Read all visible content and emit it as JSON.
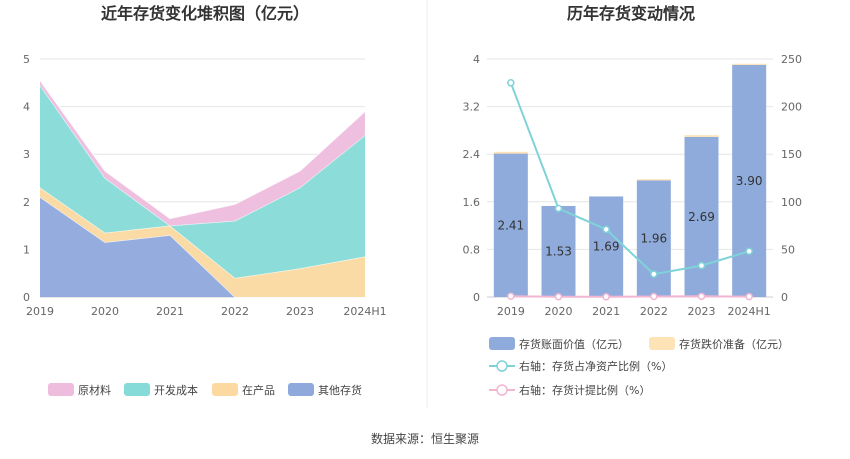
{
  "chart_data": [
    {
      "type": "area",
      "stacked": true,
      "title": "近年存货变化堆积图（亿元）",
      "categories": [
        "2019",
        "2020",
        "2021",
        "2022",
        "2023",
        "2024H1"
      ],
      "ylim": [
        0,
        5
      ],
      "yticks": [
        "0",
        "1",
        "2",
        "3",
        "4",
        "5"
      ],
      "grid": true,
      "legend_position": "bottom",
      "series": [
        {
          "name": "其他存货",
          "color": "#8fa9dc",
          "values": [
            2.1,
            1.15,
            1.3,
            0.0,
            0.0,
            0.0
          ]
        },
        {
          "name": "在产品",
          "color": "#fbd9a0",
          "values": [
            0.2,
            0.2,
            0.2,
            0.4,
            0.6,
            0.85
          ]
        },
        {
          "name": "开发成本",
          "color": "#86dbd8",
          "values": [
            2.15,
            1.15,
            0.0,
            1.2,
            1.7,
            2.55
          ]
        },
        {
          "name": "原材料",
          "color": "#eebcdd",
          "values": [
            0.1,
            0.15,
            0.15,
            0.35,
            0.35,
            0.5
          ]
        }
      ],
      "legend_order": [
        "原材料",
        "开发成本",
        "在产品",
        "其他存货"
      ]
    },
    {
      "type": "bar",
      "stacked": true,
      "title": "历年存货变动情况",
      "categories": [
        "2019",
        "2020",
        "2021",
        "2022",
        "2023",
        "2024H1"
      ],
      "ylim_left": [
        0,
        4
      ],
      "yticks_left": [
        "0",
        "0.8",
        "1.6",
        "2.4",
        "3.2",
        "4"
      ],
      "ylim_right": [
        0,
        250
      ],
      "yticks_right": [
        "0",
        "50",
        "100",
        "150",
        "200",
        "250"
      ],
      "grid": true,
      "legend_position": "bottom",
      "bars": [
        {
          "name": "存货账面价值（亿元）",
          "color": "#8fabdb",
          "values": [
            2.41,
            1.53,
            1.69,
            1.96,
            2.69,
            3.9
          ],
          "labels": [
            "2.41",
            "1.53",
            "1.69",
            "1.96",
            "2.69",
            "3.90"
          ]
        },
        {
          "name": "存货跌价准备（亿元）",
          "color": "#fde3b6",
          "values": [
            0.03,
            0.0,
            0.0,
            0.02,
            0.03,
            0.02
          ]
        }
      ],
      "lines": [
        {
          "name": "右轴：存货占净资产比例（%）",
          "color": "#7fd3d8",
          "axis": "right",
          "values": [
            225,
            93,
            71,
            24,
            33,
            48
          ]
        },
        {
          "name": "右轴：存货计提比例（%）",
          "color": "#f2b6d3",
          "axis": "right",
          "values": [
            0.8,
            0.3,
            0.2,
            0.5,
            0.7,
            0.4
          ]
        }
      ]
    }
  ],
  "footer": {
    "source": "数据来源：恒生聚源"
  }
}
